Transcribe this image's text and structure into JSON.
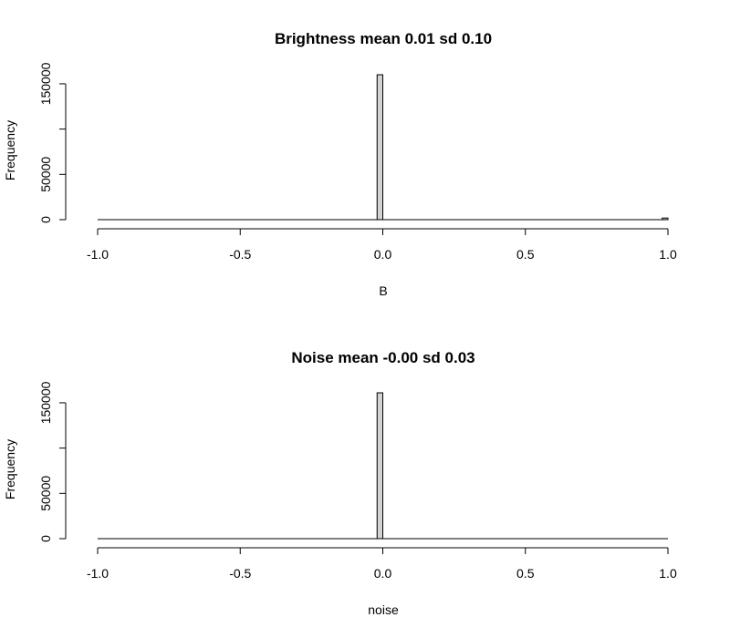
{
  "chart_data": [
    {
      "type": "bar",
      "title": "Brightness mean 0.01 sd 0.10",
      "xlabel": "B",
      "ylabel": "Frequency",
      "xlim": [
        -1.0,
        1.0
      ],
      "ylim": [
        0,
        160000
      ],
      "xticks": [
        -1.0,
        -0.5,
        0.0,
        0.5,
        1.0
      ],
      "xtick_labels": [
        "-1.0",
        "-0.5",
        "0.0",
        "0.5",
        "1.0"
      ],
      "yticks": [
        0,
        50000,
        100000,
        150000
      ],
      "ytick_labels": [
        "0",
        "50000",
        "",
        "150000"
      ],
      "bin_edges": [
        -0.02,
        0.0,
        0.98,
        1.0
      ],
      "counts": [
        160000,
        0,
        1800
      ],
      "bar_color": "#d3d3d3",
      "grid": false
    },
    {
      "type": "bar",
      "title": "Noise mean -0.00 sd 0.03",
      "xlabel": "noise",
      "ylabel": "Frequency",
      "xlim": [
        -1.0,
        1.0
      ],
      "ylim": [
        0,
        160000
      ],
      "xticks": [
        -1.0,
        -0.5,
        0.0,
        0.5,
        1.0
      ],
      "xtick_labels": [
        "-1.0",
        "-0.5",
        "0.0",
        "0.5",
        "1.0"
      ],
      "yticks": [
        0,
        50000,
        100000,
        150000
      ],
      "ytick_labels": [
        "0",
        "50000",
        "",
        "150000"
      ],
      "bin_edges": [
        -0.02,
        0.0
      ],
      "counts": [
        161000
      ],
      "bar_color": "#d3d3d3",
      "grid": false
    }
  ]
}
